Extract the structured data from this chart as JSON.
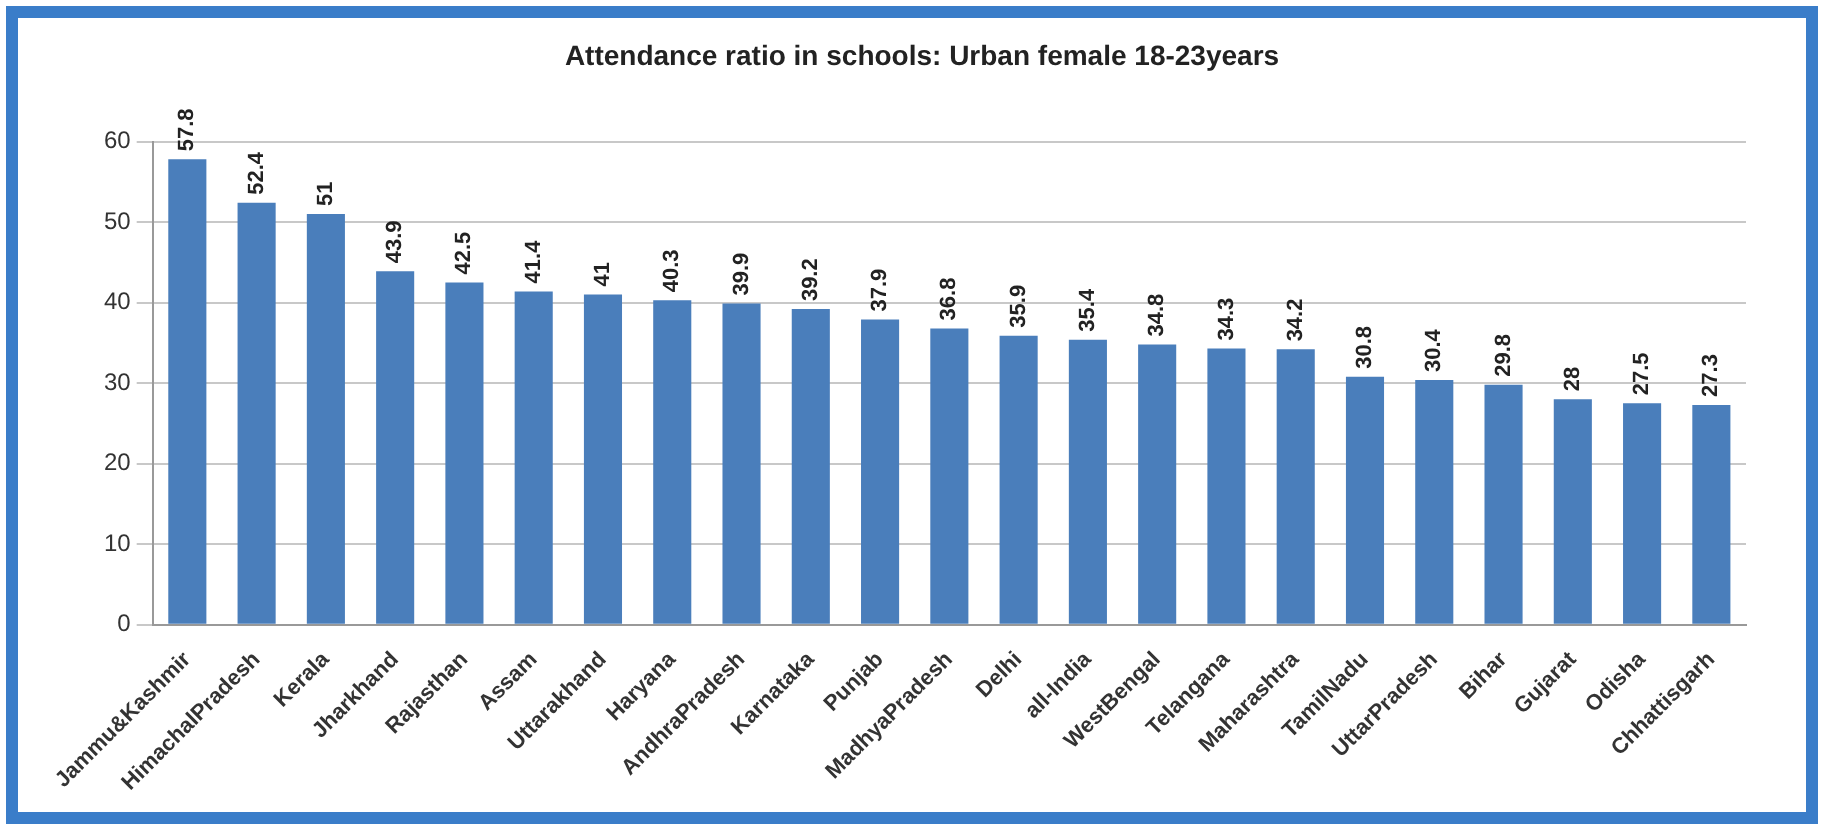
{
  "chart_data": {
    "type": "bar",
    "title": "Attendance ratio in schools: Urban female 18-23years",
    "categories": [
      "Jammu&Kashmir",
      "HimachalPradesh",
      "Kerala",
      "Jharkhand",
      "Rajasthan",
      "Assam",
      "Uttarakhand",
      "Haryana",
      "AndhraPradesh",
      "Karnataka",
      "Punjab",
      "MadhyaPradesh",
      "Delhi",
      "all-India",
      "WestBengal",
      "Telangana",
      "Maharashtra",
      "TamilNadu",
      "UttarPradesh",
      "Bihar",
      "Gujarat",
      "Odisha",
      "Chhattisgarh"
    ],
    "values": [
      57.8,
      52.4,
      51,
      43.9,
      42.5,
      41.4,
      41,
      40.3,
      39.9,
      39.2,
      37.9,
      36.8,
      35.9,
      35.4,
      34.8,
      34.3,
      34.2,
      30.8,
      30.4,
      29.8,
      28,
      27.5,
      27.3
    ],
    "color": "#4a7ebb",
    "ylim": [
      0,
      60
    ],
    "yticks": [
      0,
      10,
      20,
      30,
      40,
      50,
      60
    ],
    "grid": "y",
    "legend": false,
    "data_labels": true
  }
}
